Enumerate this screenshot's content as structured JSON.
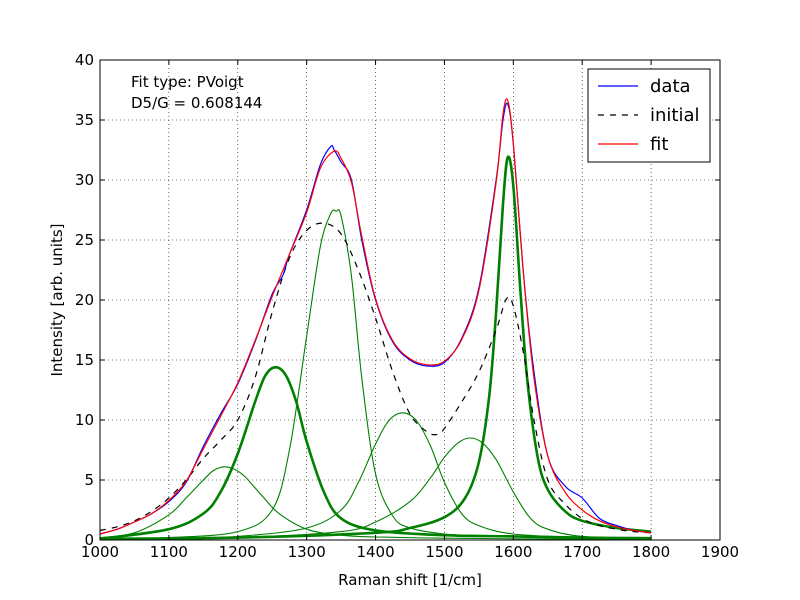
{
  "chart_data": {
    "type": "line",
    "xlabel": "Raman shift [1/cm]",
    "ylabel": "Intensity [arb. units]",
    "xlim": [
      1000,
      1900
    ],
    "ylim": [
      0,
      40
    ],
    "xticks": [
      1000,
      1100,
      1200,
      1300,
      1400,
      1500,
      1600,
      1700,
      1800,
      1900
    ],
    "yticks": [
      0,
      5,
      10,
      15,
      20,
      25,
      30,
      35,
      40
    ],
    "xtick_labels": [
      "1000",
      "1100",
      "1200",
      "1300",
      "1400",
      "1500",
      "1600",
      "1700",
      "1800",
      "1900"
    ],
    "ytick_labels": [
      "0",
      "5",
      "10",
      "15",
      "20",
      "25",
      "30",
      "35",
      "40"
    ],
    "grid": true,
    "legend_position": "top-right",
    "annotations": [
      "Fit type: PVoigt",
      "D5/G = 0.608144"
    ],
    "series": [
      {
        "name": "data",
        "color": "#0000ff",
        "style": "solid",
        "x": [
          1000,
          1025,
          1050,
          1075,
          1100,
          1125,
          1150,
          1175,
          1200,
          1225,
          1250,
          1265,
          1275,
          1300,
          1320,
          1335,
          1340,
          1350,
          1365,
          1380,
          1400,
          1425,
          1450,
          1475,
          1500,
          1525,
          1550,
          1575,
          1585,
          1592,
          1600,
          1615,
          1630,
          1650,
          1675,
          1700,
          1725,
          1750,
          1775,
          1800
        ],
        "y": [
          0.5,
          0.9,
          1.5,
          2.2,
          3.2,
          4.8,
          7.8,
          10.5,
          13.0,
          16.5,
          20.5,
          22.0,
          23.8,
          27.5,
          31.3,
          32.8,
          32.5,
          31.5,
          30.0,
          25.0,
          20.0,
          16.5,
          15.0,
          14.5,
          14.8,
          16.8,
          21.0,
          30.0,
          35.0,
          36.3,
          33.0,
          22.0,
          14.0,
          7.0,
          4.5,
          3.5,
          1.8,
          1.2,
          0.8,
          0.6
        ]
      },
      {
        "name": "initial",
        "color": "#000000",
        "style": "dashed",
        "x": [
          1000,
          1025,
          1050,
          1075,
          1100,
          1125,
          1150,
          1175,
          1200,
          1225,
          1250,
          1275,
          1300,
          1325,
          1350,
          1375,
          1400,
          1425,
          1450,
          1475,
          1490,
          1500,
          1525,
          1550,
          1575,
          1590,
          1600,
          1615,
          1630,
          1650,
          1675,
          1700,
          1725,
          1750,
          1775,
          1800
        ],
        "y": [
          0.8,
          1.1,
          1.6,
          2.4,
          3.5,
          5.0,
          6.8,
          8.3,
          10.0,
          13.5,
          19.0,
          23.5,
          25.8,
          26.4,
          25.5,
          22.5,
          18.5,
          14.0,
          10.5,
          9.0,
          8.8,
          9.3,
          11.5,
          14.0,
          17.5,
          20.1,
          19.5,
          15.5,
          10.0,
          5.0,
          3.0,
          1.8,
          1.2,
          0.9,
          0.7,
          0.6
        ]
      },
      {
        "name": "fit",
        "color": "#ff0000",
        "style": "solid",
        "x": [
          1000,
          1025,
          1050,
          1075,
          1100,
          1125,
          1150,
          1175,
          1200,
          1225,
          1250,
          1275,
          1300,
          1320,
          1340,
          1350,
          1365,
          1380,
          1400,
          1425,
          1450,
          1475,
          1500,
          1525,
          1550,
          1575,
          1585,
          1592,
          1600,
          1615,
          1630,
          1650,
          1675,
          1700,
          1725,
          1750,
          1775,
          1800
        ],
        "y": [
          0.5,
          0.9,
          1.5,
          2.2,
          3.3,
          4.9,
          7.6,
          10.3,
          13.1,
          16.6,
          20.3,
          23.8,
          27.3,
          31.0,
          32.4,
          31.8,
          29.8,
          25.3,
          20.1,
          16.6,
          15.1,
          14.6,
          14.9,
          16.7,
          20.8,
          29.8,
          35.5,
          36.6,
          33.0,
          22.0,
          13.5,
          7.0,
          4.0,
          2.5,
          1.6,
          1.1,
          0.8,
          0.6
        ]
      }
    ],
    "components": [
      {
        "color": "#008000",
        "bold": false,
        "x": [
          1000,
          1050,
          1100,
          1125,
          1150,
          1165,
          1180,
          1195,
          1210,
          1235,
          1260,
          1300,
          1350,
          1400,
          1500,
          1600,
          1700,
          1800
        ],
        "y": [
          0.2,
          0.6,
          2.1,
          3.5,
          5.0,
          5.8,
          6.1,
          5.9,
          5.3,
          3.7,
          2.2,
          0.9,
          0.4,
          0.25,
          0.15,
          0.1,
          0.08,
          0.06
        ]
      },
      {
        "color": "#008000",
        "bold": true,
        "x": [
          1000,
          1100,
          1150,
          1175,
          1200,
          1225,
          1240,
          1255,
          1270,
          1285,
          1300,
          1325,
          1350,
          1400,
          1500,
          1600,
          1700,
          1800
        ],
        "y": [
          0.1,
          0.9,
          2.2,
          4.0,
          7.2,
          11.5,
          13.7,
          14.4,
          13.7,
          11.5,
          8.2,
          4.0,
          1.8,
          0.8,
          0.4,
          0.3,
          0.2,
          0.15
        ]
      },
      {
        "color": "#008000",
        "bold": false,
        "x": [
          1000,
          1100,
          1200,
          1250,
          1275,
          1300,
          1320,
          1335,
          1343,
          1350,
          1365,
          1380,
          1400,
          1425,
          1450,
          1500,
          1550,
          1600,
          1700,
          1800
        ],
        "y": [
          0.1,
          0.2,
          0.7,
          2.5,
          7.5,
          17.0,
          24.5,
          27.2,
          27.4,
          27.0,
          22.0,
          13.5,
          5.5,
          2.0,
          1.0,
          0.5,
          0.35,
          0.3,
          0.2,
          0.15
        ]
      },
      {
        "color": "#008000",
        "bold": false,
        "x": [
          1000,
          1100,
          1200,
          1300,
          1350,
          1375,
          1400,
          1420,
          1440,
          1460,
          1480,
          1500,
          1525,
          1550,
          1600,
          1700,
          1800
        ],
        "y": [
          0.05,
          0.1,
          0.3,
          1.0,
          2.5,
          4.8,
          8.0,
          10.0,
          10.6,
          9.9,
          7.8,
          4.8,
          2.2,
          1.2,
          0.5,
          0.2,
          0.1
        ]
      },
      {
        "color": "#008000",
        "bold": false,
        "x": [
          1000,
          1200,
          1350,
          1400,
          1450,
          1480,
          1500,
          1520,
          1537,
          1555,
          1575,
          1600,
          1625,
          1650,
          1700,
          1800
        ],
        "y": [
          0.05,
          0.2,
          0.7,
          1.5,
          3.2,
          5.2,
          6.9,
          8.1,
          8.5,
          8.1,
          6.7,
          4.0,
          1.8,
          0.9,
          0.3,
          0.1
        ]
      },
      {
        "color": "#008000",
        "bold": true,
        "x": [
          1000,
          1200,
          1400,
          1450,
          1500,
          1530,
          1550,
          1565,
          1575,
          1585,
          1592,
          1600,
          1610,
          1620,
          1635,
          1650,
          1675,
          1700,
          1750,
          1800
        ],
        "y": [
          0.1,
          0.2,
          0.6,
          1.0,
          1.9,
          3.5,
          6.5,
          12.0,
          19.0,
          28.0,
          31.9,
          29.5,
          21.0,
          13.5,
          7.0,
          4.2,
          2.4,
          1.6,
          1.0,
          0.7
        ]
      }
    ]
  }
}
